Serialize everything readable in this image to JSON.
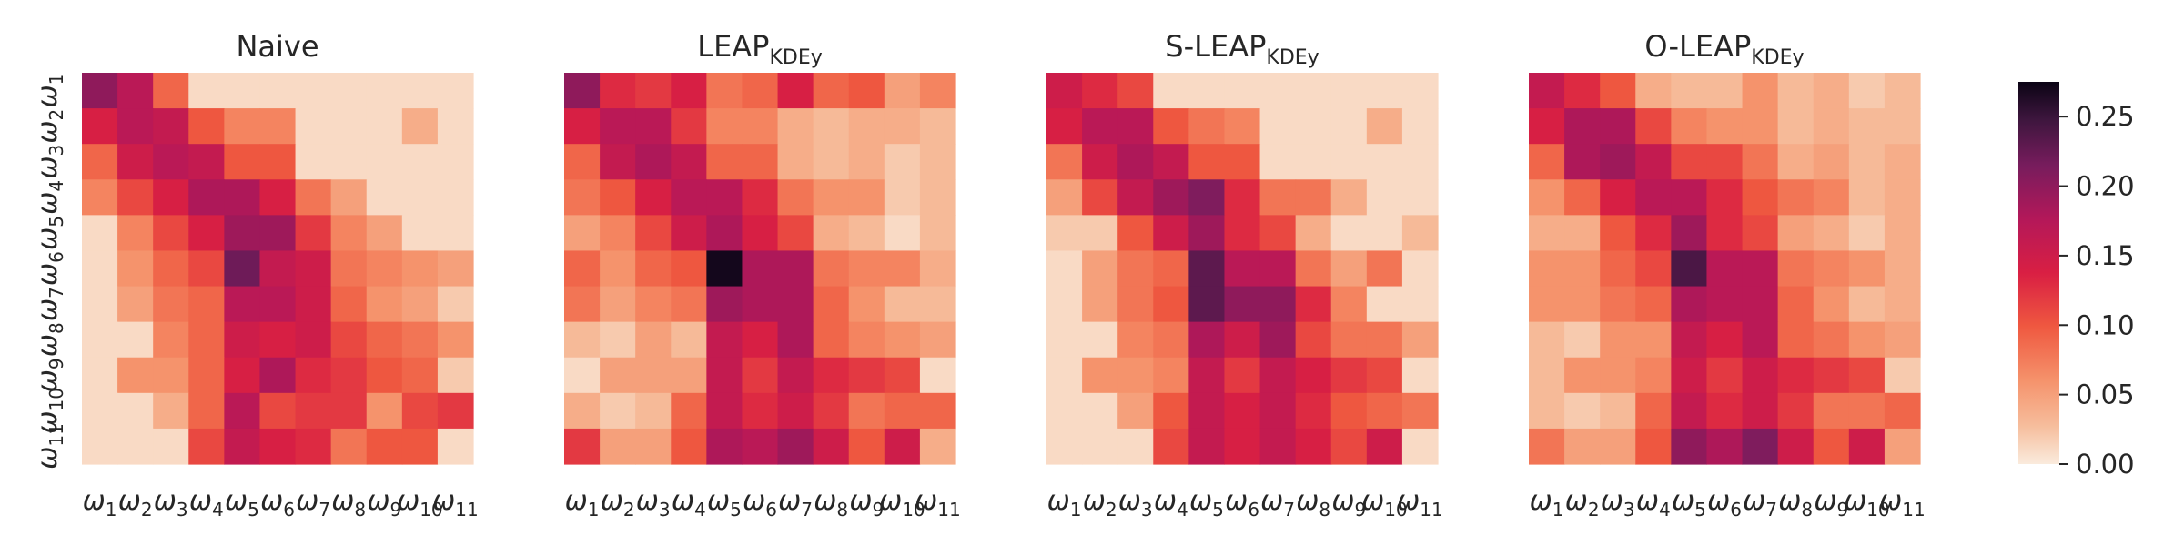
{
  "chart_data": [
    {
      "type": "heatmap",
      "title_main": "Naive",
      "title_sub": "",
      "matrix": [
        [
          0.2,
          0.17,
          0.09,
          0.01,
          0.01,
          0.01,
          0.01,
          0.01,
          0.01,
          0.01,
          0.01
        ],
        [
          0.14,
          0.17,
          0.16,
          0.1,
          0.07,
          0.07,
          0.01,
          0.01,
          0.01,
          0.04,
          0.01
        ],
        [
          0.09,
          0.15,
          0.17,
          0.16,
          0.1,
          0.1,
          0.01,
          0.01,
          0.01,
          0.01,
          0.01
        ],
        [
          0.07,
          0.11,
          0.14,
          0.18,
          0.18,
          0.14,
          0.08,
          0.05,
          0.01,
          0.01,
          0.01
        ],
        [
          0.01,
          0.07,
          0.11,
          0.14,
          0.19,
          0.19,
          0.12,
          0.07,
          0.05,
          0.01,
          0.01
        ],
        [
          0.01,
          0.06,
          0.09,
          0.11,
          0.22,
          0.16,
          0.15,
          0.08,
          0.07,
          0.06,
          0.05
        ],
        [
          0.01,
          0.05,
          0.08,
          0.09,
          0.17,
          0.17,
          0.15,
          0.09,
          0.06,
          0.05,
          0.02
        ],
        [
          0.01,
          0.01,
          0.07,
          0.09,
          0.15,
          0.14,
          0.15,
          0.11,
          0.09,
          0.08,
          0.06
        ],
        [
          0.01,
          0.06,
          0.06,
          0.09,
          0.14,
          0.18,
          0.13,
          0.12,
          0.1,
          0.09,
          0.02
        ],
        [
          0.01,
          0.01,
          0.04,
          0.09,
          0.17,
          0.11,
          0.12,
          0.12,
          0.06,
          0.11,
          0.12
        ],
        [
          0.01,
          0.01,
          0.01,
          0.11,
          0.16,
          0.14,
          0.13,
          0.08,
          0.1,
          0.1,
          0.01
        ]
      ]
    },
    {
      "type": "heatmap",
      "title_main": "LEAP",
      "title_sub": "KDEy",
      "matrix": [
        [
          0.2,
          0.13,
          0.12,
          0.14,
          0.08,
          0.09,
          0.14,
          0.09,
          0.1,
          0.05,
          0.07
        ],
        [
          0.14,
          0.17,
          0.17,
          0.12,
          0.07,
          0.07,
          0.04,
          0.03,
          0.04,
          0.04,
          0.03
        ],
        [
          0.09,
          0.16,
          0.18,
          0.16,
          0.09,
          0.09,
          0.04,
          0.03,
          0.04,
          0.02,
          0.03
        ],
        [
          0.08,
          0.1,
          0.14,
          0.17,
          0.17,
          0.13,
          0.08,
          0.06,
          0.06,
          0.02,
          0.03
        ],
        [
          0.05,
          0.07,
          0.11,
          0.15,
          0.18,
          0.14,
          0.11,
          0.04,
          0.03,
          0.01,
          0.03
        ],
        [
          0.09,
          0.06,
          0.09,
          0.1,
          0.27,
          0.18,
          0.18,
          0.08,
          0.07,
          0.07,
          0.04
        ],
        [
          0.08,
          0.05,
          0.07,
          0.08,
          0.19,
          0.18,
          0.18,
          0.09,
          0.06,
          0.03,
          0.03
        ],
        [
          0.03,
          0.02,
          0.05,
          0.03,
          0.16,
          0.14,
          0.18,
          0.09,
          0.07,
          0.06,
          0.05
        ],
        [
          0.01,
          0.05,
          0.05,
          0.05,
          0.16,
          0.12,
          0.16,
          0.13,
          0.12,
          0.11,
          0.01
        ],
        [
          0.04,
          0.02,
          0.03,
          0.09,
          0.16,
          0.13,
          0.15,
          0.12,
          0.08,
          0.09,
          0.09
        ],
        [
          0.12,
          0.05,
          0.05,
          0.1,
          0.18,
          0.17,
          0.19,
          0.15,
          0.1,
          0.15,
          0.04
        ]
      ]
    },
    {
      "type": "heatmap",
      "title_main": "S-LEAP",
      "title_sub": "KDEy",
      "matrix": [
        [
          0.15,
          0.13,
          0.11,
          0.01,
          0.01,
          0.01,
          0.01,
          0.01,
          0.01,
          0.01,
          0.01
        ],
        [
          0.14,
          0.17,
          0.17,
          0.1,
          0.08,
          0.07,
          0.01,
          0.01,
          0.01,
          0.04,
          0.01
        ],
        [
          0.08,
          0.15,
          0.18,
          0.16,
          0.1,
          0.1,
          0.01,
          0.01,
          0.01,
          0.01,
          0.01
        ],
        [
          0.05,
          0.11,
          0.16,
          0.19,
          0.21,
          0.13,
          0.08,
          0.08,
          0.04,
          0.01,
          0.01
        ],
        [
          0.02,
          0.02,
          0.1,
          0.15,
          0.19,
          0.13,
          0.11,
          0.04,
          0.01,
          0.01,
          0.03
        ],
        [
          0.01,
          0.05,
          0.08,
          0.09,
          0.23,
          0.17,
          0.17,
          0.08,
          0.05,
          0.08,
          0.01
        ],
        [
          0.01,
          0.05,
          0.08,
          0.1,
          0.23,
          0.2,
          0.2,
          0.13,
          0.07,
          0.01,
          0.01
        ],
        [
          0.01,
          0.01,
          0.07,
          0.08,
          0.18,
          0.15,
          0.19,
          0.11,
          0.08,
          0.08,
          0.05
        ],
        [
          0.01,
          0.06,
          0.06,
          0.07,
          0.16,
          0.12,
          0.16,
          0.14,
          0.12,
          0.11,
          0.01
        ],
        [
          0.01,
          0.01,
          0.05,
          0.1,
          0.16,
          0.14,
          0.16,
          0.13,
          0.1,
          0.09,
          0.08
        ],
        [
          0.01,
          0.01,
          0.01,
          0.11,
          0.16,
          0.14,
          0.16,
          0.14,
          0.11,
          0.15,
          0.01
        ]
      ]
    },
    {
      "type": "heatmap",
      "title_main": "O-LEAP",
      "title_sub": "KDEy",
      "matrix": [
        [
          0.16,
          0.13,
          0.1,
          0.04,
          0.03,
          0.03,
          0.06,
          0.03,
          0.04,
          0.02,
          0.03
        ],
        [
          0.14,
          0.18,
          0.18,
          0.11,
          0.07,
          0.06,
          0.06,
          0.03,
          0.04,
          0.03,
          0.03
        ],
        [
          0.09,
          0.18,
          0.19,
          0.16,
          0.11,
          0.11,
          0.08,
          0.04,
          0.05,
          0.03,
          0.04
        ],
        [
          0.06,
          0.09,
          0.14,
          0.17,
          0.17,
          0.13,
          0.1,
          0.08,
          0.07,
          0.03,
          0.04
        ],
        [
          0.04,
          0.04,
          0.1,
          0.13,
          0.19,
          0.13,
          0.11,
          0.05,
          0.04,
          0.02,
          0.04
        ],
        [
          0.06,
          0.06,
          0.09,
          0.11,
          0.24,
          0.17,
          0.17,
          0.08,
          0.07,
          0.06,
          0.04
        ],
        [
          0.06,
          0.06,
          0.08,
          0.09,
          0.18,
          0.17,
          0.17,
          0.09,
          0.06,
          0.03,
          0.04
        ],
        [
          0.03,
          0.02,
          0.06,
          0.06,
          0.16,
          0.14,
          0.17,
          0.09,
          0.08,
          0.06,
          0.05
        ],
        [
          0.03,
          0.06,
          0.06,
          0.07,
          0.15,
          0.12,
          0.15,
          0.13,
          0.12,
          0.11,
          0.02
        ],
        [
          0.03,
          0.02,
          0.03,
          0.09,
          0.16,
          0.13,
          0.15,
          0.12,
          0.08,
          0.08,
          0.09
        ],
        [
          0.08,
          0.05,
          0.05,
          0.1,
          0.2,
          0.18,
          0.21,
          0.15,
          0.1,
          0.15,
          0.05
        ]
      ]
    }
  ],
  "tick_symbol": "ω",
  "tick_indices": [
    "1",
    "2",
    "3",
    "4",
    "5",
    "6",
    "7",
    "8",
    "9",
    "10",
    "11"
  ],
  "colorbar": {
    "min": 0.0,
    "max": 0.275,
    "ticks": [
      0.0,
      0.05,
      0.1,
      0.15,
      0.2,
      0.25
    ],
    "tick_labels": [
      "0.00",
      "0.05",
      "0.10",
      "0.15",
      "0.20",
      "0.25"
    ],
    "colormap": "rocket_r"
  }
}
